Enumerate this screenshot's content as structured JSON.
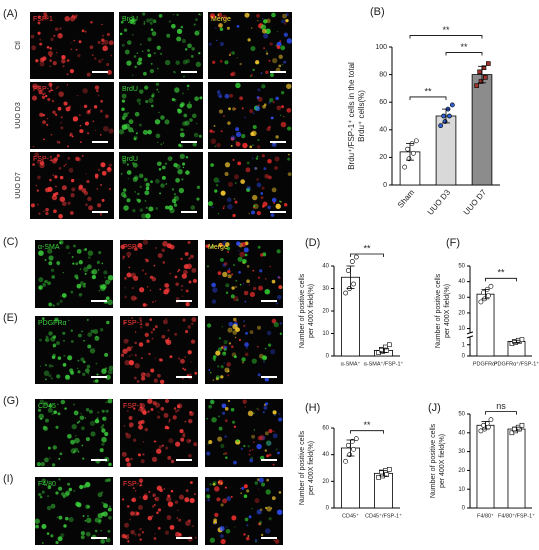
{
  "figure": {
    "panels": [
      {
        "label": "(A)",
        "label_colors": [
          "#ff3b3b",
          "#3cd23c",
          "#ffe23a"
        ],
        "rows": [
          {
            "name": "Ctl",
            "labels": [
              "FSP-1",
              "BrdU",
              "Merge"
            ]
          },
          {
            "name": "UUO D3",
            "labels": [
              "FSP-1",
              "BrdU"
            ]
          },
          {
            "name": "UUO D7",
            "labels": [
              "FSP-1",
              "BrdU"
            ]
          }
        ]
      },
      {
        "label": "(C)",
        "label_colors": [
          "#3cd23c",
          "#ff3b3b",
          "#ffe23a"
        ],
        "rows": [
          {
            "labels": [
              "α-SMA",
              "FSP-1",
              "Merge"
            ]
          }
        ]
      },
      {
        "label": "(E)",
        "label_colors": [
          "#3cd23c",
          "#ff3b3b",
          "#ffe23a"
        ],
        "rows": [
          {
            "labels": [
              "PDGFRα",
              "FSP-1"
            ]
          }
        ]
      },
      {
        "label": "(G)",
        "label_colors": [
          "#3cd23c",
          "#ff3b3b",
          "#ffe23a"
        ],
        "rows": [
          {
            "labels": [
              "CD45",
              "FSP-1"
            ]
          }
        ]
      },
      {
        "label": "(I)",
        "label_colors": [
          "#3cd23c",
          "#ff3b3b",
          "#ffe23a"
        ],
        "rows": [
          {
            "labels": [
              "F4/80",
              "FSP-1"
            ]
          }
        ]
      }
    ]
  },
  "chart_data": [
    {
      "type": "bar",
      "label": "(B)",
      "ylabel": [
        "Brdu⁺/FSP-1⁺ cells in the total",
        "Brdu⁺ cells(%)"
      ],
      "categories": [
        "Sham",
        "UUO D3",
        "UUO D7"
      ],
      "values": [
        24,
        50,
        80
      ],
      "errors": [
        6,
        5,
        6
      ],
      "points": [
        [
          13,
          19,
          23,
          26,
          30,
          32
        ],
        [
          43,
          46,
          50,
          50,
          55,
          58
        ],
        [
          72,
          75,
          78,
          82,
          85,
          88
        ]
      ],
      "colors": [
        "#ffffff",
        "#d9d9d9",
        "#8c8c8c"
      ],
      "point_colors": [
        "#ffffff",
        "#2f5fd0",
        "#a0302a"
      ],
      "ylim": [
        0,
        100
      ],
      "yticks": [
        0,
        20,
        40,
        60,
        80,
        100
      ],
      "significance": [
        {
          "label": "**",
          "pair": [
            0,
            1
          ]
        },
        {
          "label": "**",
          "pair": [
            1,
            2
          ]
        },
        {
          "label": "**",
          "pair": [
            0,
            2
          ]
        }
      ]
    },
    {
      "type": "bar",
      "label": "(D)",
      "ylabel": [
        "Number of positive cells",
        "per 400X field(%)"
      ],
      "categories": [
        "α-SMA⁺",
        "α-SMA⁺/FSP-1⁺"
      ],
      "values": [
        35,
        2.5
      ],
      "errors": [
        5,
        1
      ],
      "points": [
        [
          28,
          30,
          32,
          38,
          42,
          44
        ],
        [
          1.5,
          2,
          2.5,
          3,
          4,
          5
        ]
      ],
      "colors": [
        "#ffffff",
        "#ffffff"
      ],
      "point_colors": [
        "#ffffff",
        "#ffffff"
      ],
      "ylim": [
        0,
        40
      ],
      "yticks": [
        0,
        10,
        20,
        30,
        40
      ],
      "significance": [
        {
          "label": "**",
          "pair": [
            0,
            1
          ]
        }
      ]
    },
    {
      "type": "bar",
      "label": "(F)",
      "ylabel": [
        "Number of positive cells",
        "per 400X field(%)"
      ],
      "categories": [
        "PDGFRα⁺",
        "PDGFRα⁺/FSP-1⁺"
      ],
      "values": [
        32,
        1.3
      ],
      "errors": [
        3,
        0.1
      ],
      "points": [
        [
          27,
          29,
          31,
          33,
          35,
          37
        ],
        [
          1.1,
          1.2,
          1.3,
          1.3,
          1.4,
          1.45
        ]
      ],
      "colors": [
        "#ffffff",
        "#ffffff"
      ],
      "point_colors": [
        "#ffffff",
        "#ffffff"
      ],
      "ylim": [
        0,
        50
      ],
      "ybreak": [
        1.6,
        8
      ],
      "yticks": [
        0,
        1,
        10,
        20,
        30,
        40,
        50
      ],
      "significance": [
        {
          "label": "**",
          "pair": [
            0,
            1
          ]
        }
      ]
    },
    {
      "type": "bar",
      "label": "(H)",
      "ylabel": [
        "Number of positive cells",
        "per 400X field(%)"
      ],
      "categories": [
        "CD45⁺",
        "CD45⁺/FSP-1⁺"
      ],
      "values": [
        45,
        26
      ],
      "errors": [
        6,
        2
      ],
      "points": [
        [
          35,
          40,
          44,
          47,
          50,
          52
        ],
        [
          23,
          24,
          25,
          27,
          28,
          29
        ]
      ],
      "colors": [
        "#ffffff",
        "#ffffff"
      ],
      "point_colors": [
        "#ffffff",
        "#ffffff"
      ],
      "ylim": [
        0,
        60
      ],
      "yticks": [
        0,
        20,
        40,
        60
      ],
      "significance": [
        {
          "label": "**",
          "pair": [
            0,
            1
          ]
        }
      ]
    },
    {
      "type": "bar",
      "label": "(J)",
      "ylabel": [
        "Number of positive cells",
        "per 400X field(%)"
      ],
      "categories": [
        "F4/80⁺",
        "F4/80⁺/FSP-1⁺"
      ],
      "values": [
        44,
        42
      ],
      "errors": [
        2,
        1
      ],
      "points": [
        [
          41,
          42,
          43,
          44,
          45,
          47
        ],
        [
          40,
          41,
          42,
          42,
          43,
          44
        ]
      ],
      "colors": [
        "#ffffff",
        "#ffffff"
      ],
      "point_colors": [
        "#ffffff",
        "#ffffff"
      ],
      "ylim": [
        0,
        50
      ],
      "yticks": [
        0,
        10,
        20,
        30,
        40,
        50
      ],
      "significance": [
        {
          "label": "ns",
          "pair": [
            0,
            1
          ]
        }
      ]
    }
  ]
}
